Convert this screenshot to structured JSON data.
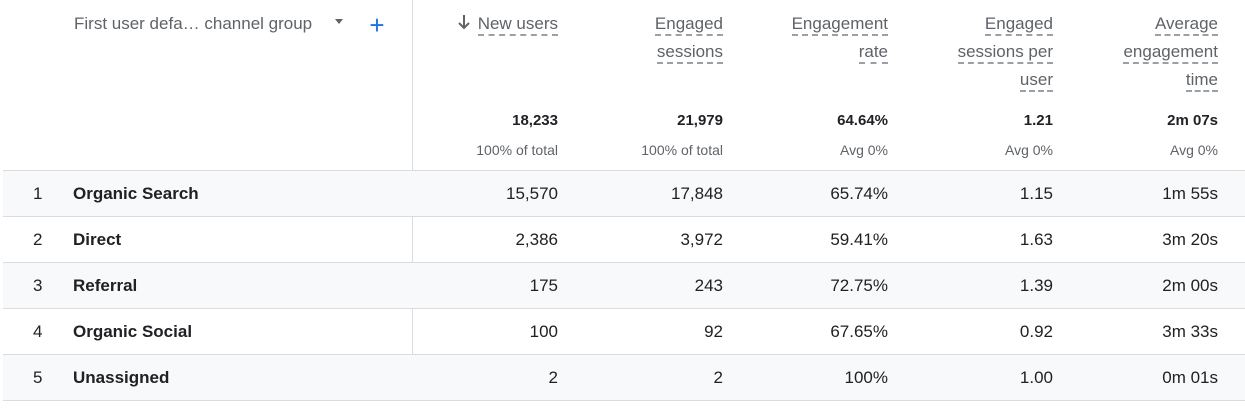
{
  "dimension_header": "First user defa… channel group",
  "columns": [
    {
      "lines": [
        "New users"
      ],
      "sorted": true,
      "total": "18,233",
      "total_sub": "100% of total"
    },
    {
      "lines": [
        "Engaged",
        "sessions"
      ],
      "sorted": false,
      "total": "21,979",
      "total_sub": "100% of total"
    },
    {
      "lines": [
        "Engagement",
        "rate"
      ],
      "sorted": false,
      "total": "64.64%",
      "total_sub": "Avg 0%"
    },
    {
      "lines": [
        "Engaged",
        "sessions per",
        "user"
      ],
      "sorted": false,
      "total": "1.21",
      "total_sub": "Avg 0%"
    },
    {
      "lines": [
        "Average",
        "engagement",
        "time"
      ],
      "sorted": false,
      "total": "2m 07s",
      "total_sub": "Avg 0%"
    }
  ],
  "rows": [
    {
      "index": "1",
      "name": "Organic Search",
      "values": [
        "15,570",
        "17,848",
        "65.74%",
        "1.15",
        "1m 55s"
      ]
    },
    {
      "index": "2",
      "name": "Direct",
      "values": [
        "2,386",
        "3,972",
        "59.41%",
        "1.63",
        "3m 20s"
      ]
    },
    {
      "index": "3",
      "name": "Referral",
      "values": [
        "175",
        "243",
        "72.75%",
        "1.39",
        "2m 00s"
      ]
    },
    {
      "index": "4",
      "name": "Organic Social",
      "values": [
        "100",
        "92",
        "67.65%",
        "0.92",
        "3m 33s"
      ]
    },
    {
      "index": "5",
      "name": "Unassigned",
      "values": [
        "2",
        "2",
        "100%",
        "1.00",
        "0m 01s"
      ]
    }
  ]
}
